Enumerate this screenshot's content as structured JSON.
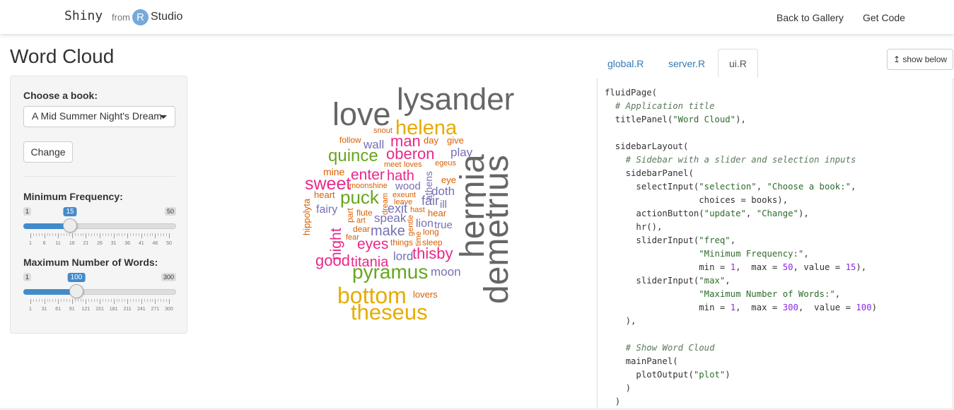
{
  "navbar": {
    "brand_shiny": "Shiny",
    "brand_from": "from",
    "brand_r": "R",
    "brand_studio": "Studio",
    "back_to_gallery": "Back to Gallery",
    "get_code": "Get Code"
  },
  "page": {
    "title": "Word Cloud"
  },
  "sidebar": {
    "book_label": "Choose a book:",
    "book_selected": "A Mid Summer Night's Dream",
    "change_button": "Change",
    "freq_slider": {
      "label": "Minimum Frequency:",
      "min": 1,
      "max": 50,
      "value": 15,
      "ticks": [
        "1",
        "6",
        "11",
        "16",
        "21",
        "26",
        "31",
        "36",
        "41",
        "46",
        "50"
      ]
    },
    "words_slider": {
      "label": "Maximum Number of Words:",
      "min": 1,
      "max": 300,
      "value": 100,
      "ticks": [
        "1",
        "31",
        "61",
        "91",
        "121",
        "151",
        "181",
        "211",
        "241",
        "271",
        "300"
      ]
    }
  },
  "wordcloud": {
    "words": [
      {
        "text": "lysander",
        "color": "#666666"
      },
      {
        "text": "love",
        "color": "#666666"
      },
      {
        "text": "helena",
        "color": "#e6ab02"
      },
      {
        "text": "snout",
        "color": "#d95f02"
      },
      {
        "text": "follow",
        "color": "#d95f02"
      },
      {
        "text": "wall",
        "color": "#7570b3"
      },
      {
        "text": "man",
        "color": "#e7298a"
      },
      {
        "text": "day",
        "color": "#d95f02"
      },
      {
        "text": "give",
        "color": "#d95f02"
      },
      {
        "text": "quince",
        "color": "#66a61e"
      },
      {
        "text": "oberon",
        "color": "#e7298a"
      },
      {
        "text": "play",
        "color": "#7570b3"
      },
      {
        "text": "meet",
        "color": "#d95f02"
      },
      {
        "text": "loves",
        "color": "#d95f02"
      },
      {
        "text": "egeus",
        "color": "#d95f02"
      },
      {
        "text": "mine",
        "color": "#d95f02"
      },
      {
        "text": "enter",
        "color": "#e7298a"
      },
      {
        "text": "hath",
        "color": "#e7298a"
      },
      {
        "text": "athens",
        "color": "#7570b3"
      },
      {
        "text": "eye",
        "color": "#d95f02"
      },
      {
        "text": "sweet",
        "color": "#e7298a"
      },
      {
        "text": "moonshine",
        "color": "#d95f02"
      },
      {
        "text": "wood",
        "color": "#7570b3"
      },
      {
        "text": "doth",
        "color": "#7570b3"
      },
      {
        "text": "heart",
        "color": "#d95f02"
      },
      {
        "text": "puck",
        "color": "#66a61e"
      },
      {
        "text": "dream",
        "color": "#d95f02"
      },
      {
        "text": "exeunt",
        "color": "#d95f02"
      },
      {
        "text": "fair",
        "color": "#7570b3"
      },
      {
        "text": "leave",
        "color": "#d95f02"
      },
      {
        "text": "ill",
        "color": "#7570b3"
      },
      {
        "text": "hippolyta",
        "color": "#d95f02"
      },
      {
        "text": "fairy",
        "color": "#7570b3"
      },
      {
        "text": "part",
        "color": "#d95f02"
      },
      {
        "text": "flute",
        "color": "#d95f02"
      },
      {
        "text": "exit",
        "color": "#7570b3"
      },
      {
        "text": "hast",
        "color": "#d95f02"
      },
      {
        "text": "hear",
        "color": "#d95f02"
      },
      {
        "text": "art",
        "color": "#d95f02"
      },
      {
        "text": "speak",
        "color": "#7570b3"
      },
      {
        "text": "gentle",
        "color": "#d95f02"
      },
      {
        "text": "lion",
        "color": "#7570b3"
      },
      {
        "text": "true",
        "color": "#7570b3"
      },
      {
        "text": "night",
        "color": "#e7298a"
      },
      {
        "text": "dear",
        "color": "#d95f02"
      },
      {
        "text": "make",
        "color": "#7570b3"
      },
      {
        "text": "long",
        "color": "#d95f02"
      },
      {
        "text": "fear",
        "color": "#d95f02"
      },
      {
        "text": "time",
        "color": "#d95f02"
      },
      {
        "text": "things",
        "color": "#d95f02"
      },
      {
        "text": "sleep",
        "color": "#d95f02"
      },
      {
        "text": "eyes",
        "color": "#e7298a"
      },
      {
        "text": "lord",
        "color": "#7570b3"
      },
      {
        "text": "thisby",
        "color": "#e7298a"
      },
      {
        "text": "good",
        "color": "#e7298a"
      },
      {
        "text": "titania",
        "color": "#e7298a"
      },
      {
        "text": "pyramus",
        "color": "#66a61e"
      },
      {
        "text": "moon",
        "color": "#7570b3"
      },
      {
        "text": "hermia",
        "color": "#666666"
      },
      {
        "text": "demetrius",
        "color": "#666666"
      },
      {
        "text": "bottom",
        "color": "#e6ab02"
      },
      {
        "text": "lovers",
        "color": "#d95f02"
      },
      {
        "text": "theseus",
        "color": "#e6ab02"
      }
    ]
  },
  "code_tabs": {
    "tabs": [
      "global.R",
      "server.R",
      "ui.R"
    ],
    "active": "ui.R",
    "show_below": "↥ show below"
  },
  "code": {
    "lines": [
      [
        {
          "t": "fluidPage("
        }
      ],
      [
        {
          "t": "  "
        },
        {
          "t": "# Application title",
          "c": "cm"
        }
      ],
      [
        {
          "t": "  titlePanel("
        },
        {
          "t": "\"Word Cloud\"",
          "c": "st"
        },
        {
          "t": "),"
        }
      ],
      [
        {
          "t": ""
        }
      ],
      [
        {
          "t": "  sidebarLayout("
        }
      ],
      [
        {
          "t": "    "
        },
        {
          "t": "# Sidebar with a slider and selection inputs",
          "c": "cm"
        }
      ],
      [
        {
          "t": "    sidebarPanel("
        }
      ],
      [
        {
          "t": "      selectInput("
        },
        {
          "t": "\"selection\"",
          "c": "st"
        },
        {
          "t": ", "
        },
        {
          "t": "\"Choose a book:\"",
          "c": "st"
        },
        {
          "t": ","
        }
      ],
      [
        {
          "t": "                  choices = books),"
        }
      ],
      [
        {
          "t": "      actionButton("
        },
        {
          "t": "\"update\"",
          "c": "st"
        },
        {
          "t": ", "
        },
        {
          "t": "\"Change\"",
          "c": "st"
        },
        {
          "t": "),"
        }
      ],
      [
        {
          "t": "      hr(),"
        }
      ],
      [
        {
          "t": "      sliderInput("
        },
        {
          "t": "\"freq\"",
          "c": "st"
        },
        {
          "t": ","
        }
      ],
      [
        {
          "t": "                  "
        },
        {
          "t": "\"Minimum Frequency:\"",
          "c": "st"
        },
        {
          "t": ","
        }
      ],
      [
        {
          "t": "                  min = "
        },
        {
          "t": "1",
          "c": "nm"
        },
        {
          "t": ",  max = "
        },
        {
          "t": "50",
          "c": "nm"
        },
        {
          "t": ", value = "
        },
        {
          "t": "15",
          "c": "nm"
        },
        {
          "t": "),"
        }
      ],
      [
        {
          "t": "      sliderInput("
        },
        {
          "t": "\"max\"",
          "c": "st"
        },
        {
          "t": ","
        }
      ],
      [
        {
          "t": "                  "
        },
        {
          "t": "\"Maximum Number of Words:\"",
          "c": "st"
        },
        {
          "t": ","
        }
      ],
      [
        {
          "t": "                  min = "
        },
        {
          "t": "1",
          "c": "nm"
        },
        {
          "t": ",  max = "
        },
        {
          "t": "300",
          "c": "nm"
        },
        {
          "t": ",  value = "
        },
        {
          "t": "100",
          "c": "nm"
        },
        {
          "t": ")"
        }
      ],
      [
        {
          "t": "    ),"
        }
      ],
      [
        {
          "t": ""
        }
      ],
      [
        {
          "t": "    "
        },
        {
          "t": "# Show Word Cloud",
          "c": "cm"
        }
      ],
      [
        {
          "t": "    mainPanel("
        }
      ],
      [
        {
          "t": "      plotOutput("
        },
        {
          "t": "\"plot\"",
          "c": "st"
        },
        {
          "t": ")"
        }
      ],
      [
        {
          "t": "    )"
        }
      ],
      [
        {
          "t": "  )"
        }
      ]
    ]
  }
}
